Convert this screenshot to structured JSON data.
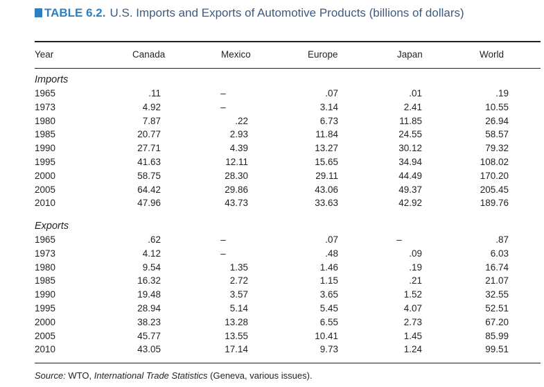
{
  "title": {
    "number": "TABLE 6.2.",
    "text": "U.S. Imports and Exports of Automotive Products (billions of dollars)"
  },
  "headers": [
    "Year",
    "Canada",
    "Mexico",
    "Europe",
    "Japan",
    "World"
  ],
  "sections": [
    {
      "name": "Imports",
      "rows": [
        [
          "1965",
          ".11",
          "–",
          ".07",
          ".01",
          ".19"
        ],
        [
          "1973",
          "4.92",
          "–",
          "3.14",
          "2.41",
          "10.55"
        ],
        [
          "1980",
          "7.87",
          ".22",
          "6.73",
          "11.85",
          "26.94"
        ],
        [
          "1985",
          "20.77",
          "2.93",
          "11.84",
          "24.55",
          "58.57"
        ],
        [
          "1990",
          "27.71",
          "4.39",
          "13.27",
          "30.12",
          "79.32"
        ],
        [
          "1995",
          "41.63",
          "12.11",
          "15.65",
          "34.94",
          "108.02"
        ],
        [
          "2000",
          "58.75",
          "28.30",
          "29.11",
          "44.49",
          "170.20"
        ],
        [
          "2005",
          "64.42",
          "29.86",
          "43.06",
          "49.37",
          "205.45"
        ],
        [
          "2010",
          "47.96",
          "43.73",
          "33.63",
          "42.92",
          "189.76"
        ]
      ]
    },
    {
      "name": "Exports",
      "rows": [
        [
          "1965",
          ".62",
          "–",
          ".07",
          "–",
          ".87"
        ],
        [
          "1973",
          "4.12",
          "–",
          ".48",
          ".09",
          "6.03"
        ],
        [
          "1980",
          "9.54",
          "1.35",
          "1.46",
          ".19",
          "16.74"
        ],
        [
          "1985",
          "16.32",
          "2.72",
          "1.15",
          ".21",
          "21.07"
        ],
        [
          "1990",
          "19.48",
          "3.57",
          "3.65",
          "1.52",
          "32.55"
        ],
        [
          "1995",
          "28.94",
          "5.14",
          "5.45",
          "4.07",
          "52.51"
        ],
        [
          "2000",
          "38.23",
          "13.28",
          "6.55",
          "2.73",
          "67.20"
        ],
        [
          "2005",
          "45.77",
          "13.55",
          "10.41",
          "1.45",
          "85.99"
        ],
        [
          "2010",
          "43.05",
          "17.14",
          "9.73",
          "1.24",
          "99.51"
        ]
      ]
    }
  ],
  "source": {
    "prefix": "Source:",
    "middle": " WTO, ",
    "title": "International Trade Statistics",
    "suffix": " (Geneva, various issues)."
  },
  "colors": {
    "title_number": "#2d7fc1",
    "title_text": "#3d5a80",
    "body_text": "#231f20"
  }
}
